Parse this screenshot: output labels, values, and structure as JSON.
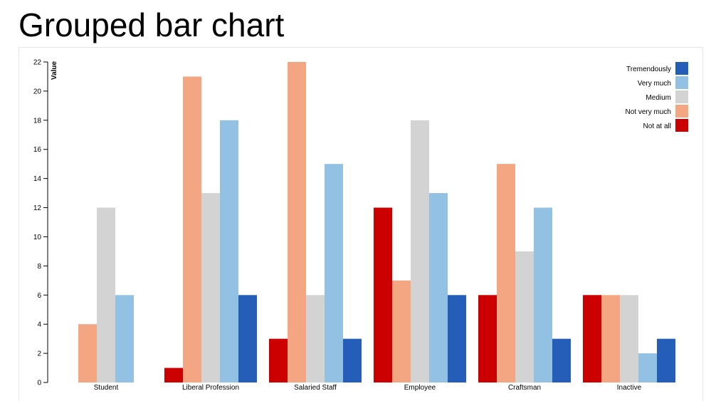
{
  "page": {
    "title": "Grouped bar chart"
  },
  "chart_data": {
    "type": "bar",
    "title": "Grouped bar chart",
    "xlabel": "",
    "ylabel": "Value",
    "ylim": [
      0,
      22
    ],
    "yticks": [
      0,
      2,
      4,
      6,
      8,
      10,
      12,
      14,
      16,
      18,
      20,
      22
    ],
    "categories": [
      "Student",
      "Liberal Profession",
      "Salaried Staff",
      "Employee",
      "Craftsman",
      "Inactive"
    ],
    "series": [
      {
        "name": "Not at all",
        "color": "#cc0000",
        "values": [
          0,
          1,
          3,
          12,
          6,
          6
        ]
      },
      {
        "name": "Not very much",
        "color": "#f4a582",
        "values": [
          4,
          21,
          22,
          7,
          15,
          6
        ]
      },
      {
        "name": "Medium",
        "color": "#d3d3d3",
        "values": [
          12,
          13,
          6,
          18,
          9,
          6
        ]
      },
      {
        "name": "Very much",
        "color": "#92c1e3",
        "values": [
          6,
          18,
          15,
          13,
          12,
          2
        ]
      },
      {
        "name": "Tremendously",
        "color": "#255eb8",
        "values": [
          0,
          6,
          3,
          6,
          3,
          3
        ]
      }
    ],
    "legend": {
      "position": "top-right",
      "order": [
        "Tremendously",
        "Very much",
        "Medium",
        "Not very much",
        "Not at all"
      ]
    },
    "grid": false
  }
}
